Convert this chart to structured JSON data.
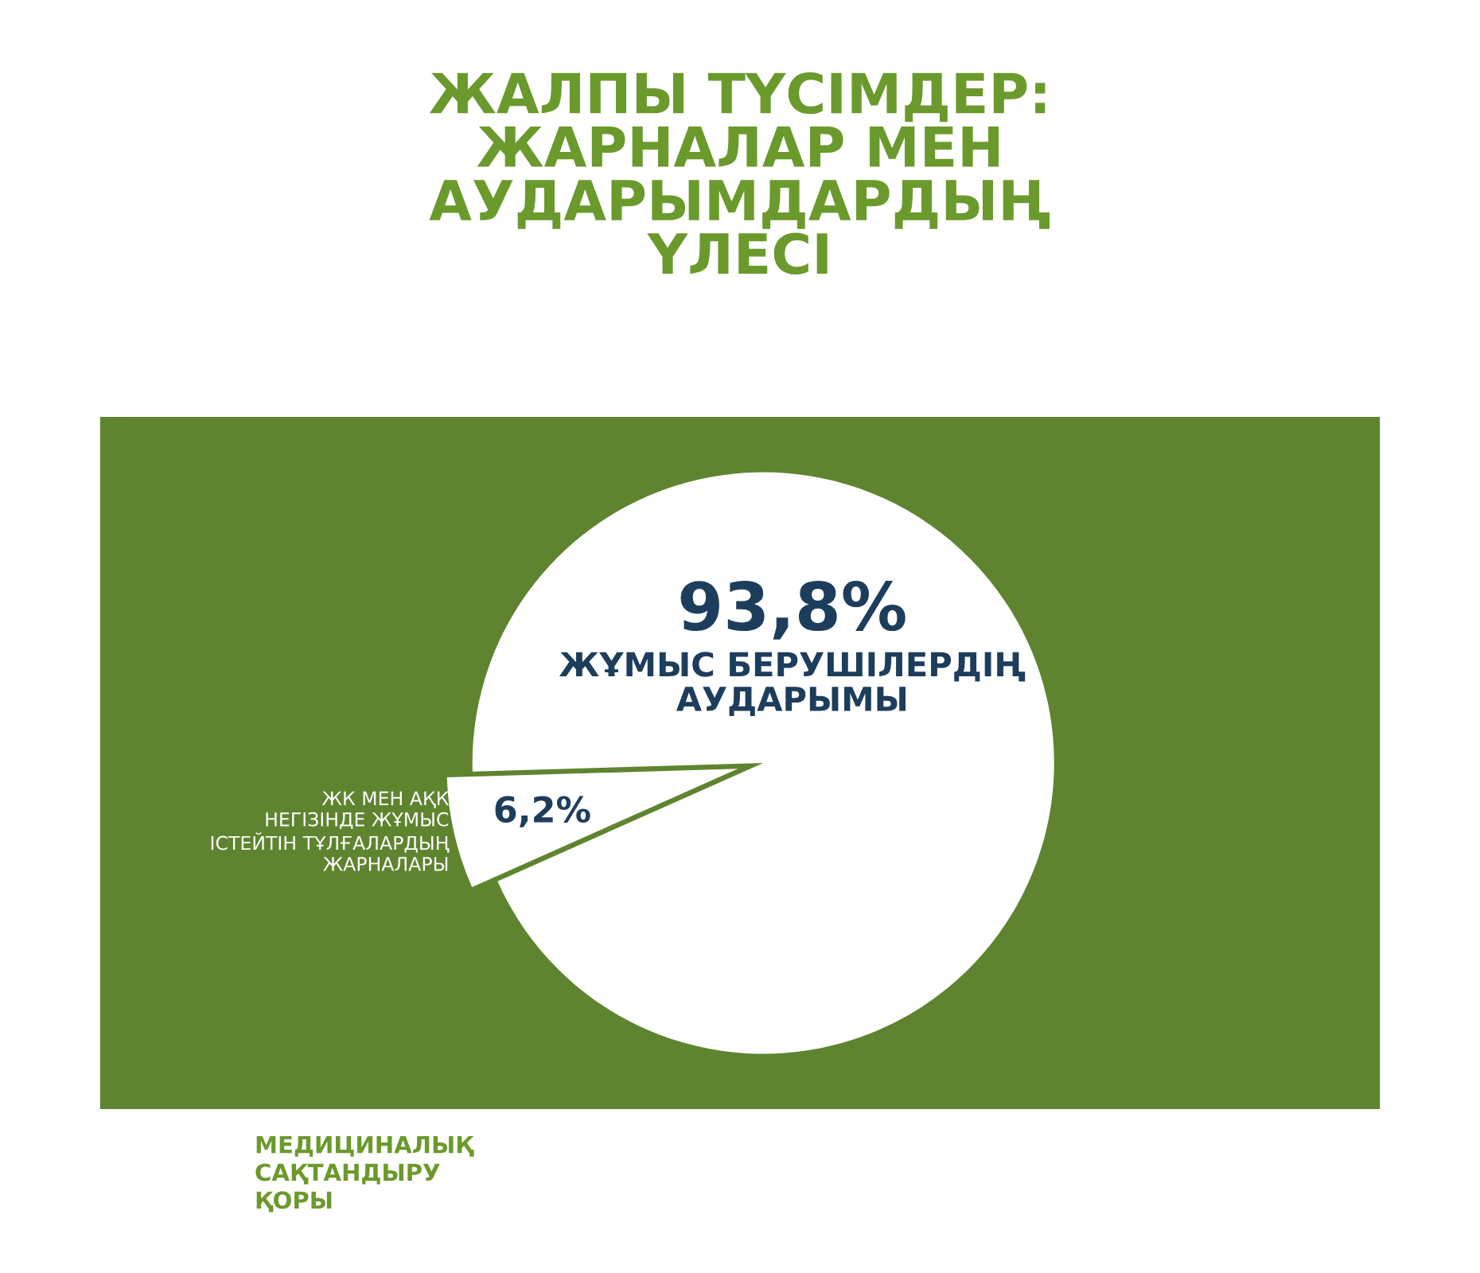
{
  "chart_data": {
    "type": "pie",
    "title": "ЖАЛПЫ ТҮСІМДЕР:\nЖАРНАЛАР МЕН\nАУДАРЫМДАРДЫҢ\nҮЛЕСІ",
    "categories": [
      "ЖҰМЫС БЕРУШІЛЕРДІҢ\nАУДАРЫМЫ",
      "ЖК МЕН АҚК\nНЕГІЗІНДЕ ЖҰМЫС\nІСТЕЙТІН ТҰЛҒАЛАРДЫҢ\nЖАРНАЛАРЫ"
    ],
    "values": [
      93.8,
      6.2
    ],
    "value_labels": [
      "93,8%",
      "6,2%"
    ],
    "colors": [
      "#ffffff",
      "#ffffff"
    ],
    "annotations": [
      "МЕДИЦИНАЛЫҚ\nСАҚТАНДЫРУ\nҚОРЫ"
    ],
    "legend": false
  }
}
